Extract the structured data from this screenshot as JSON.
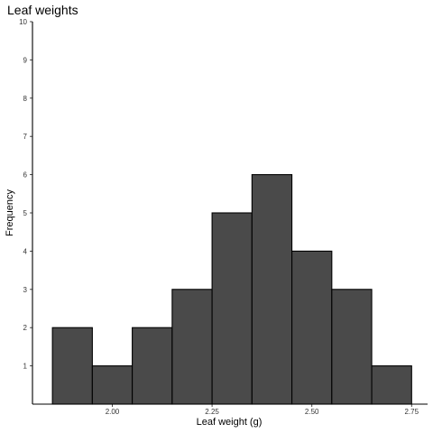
{
  "chart_data": {
    "type": "bar",
    "title": "Leaf weights",
    "xlabel": "Leaf weight (g)",
    "ylabel": "Frequency",
    "bins": [
      [
        1.85,
        1.95
      ],
      [
        1.95,
        2.05
      ],
      [
        2.05,
        2.15
      ],
      [
        2.15,
        2.25
      ],
      [
        2.25,
        2.35
      ],
      [
        2.35,
        2.45
      ],
      [
        2.45,
        2.55
      ],
      [
        2.55,
        2.65
      ],
      [
        2.65,
        2.75
      ]
    ],
    "values": [
      2,
      1,
      2,
      3,
      5,
      6,
      4,
      3,
      1
    ],
    "xlim": [
      1.8,
      2.79
    ],
    "ylim": [
      0,
      10
    ],
    "x_ticks": [
      "2.00",
      "2.25",
      "2.50",
      "2.75"
    ],
    "y_ticks": [
      "1",
      "2",
      "3",
      "4",
      "5",
      "6",
      "7",
      "8",
      "9",
      "10"
    ],
    "bar_color": "#4a4a4a",
    "bar_outline": "#000000",
    "grid": false,
    "legend": "none"
  }
}
